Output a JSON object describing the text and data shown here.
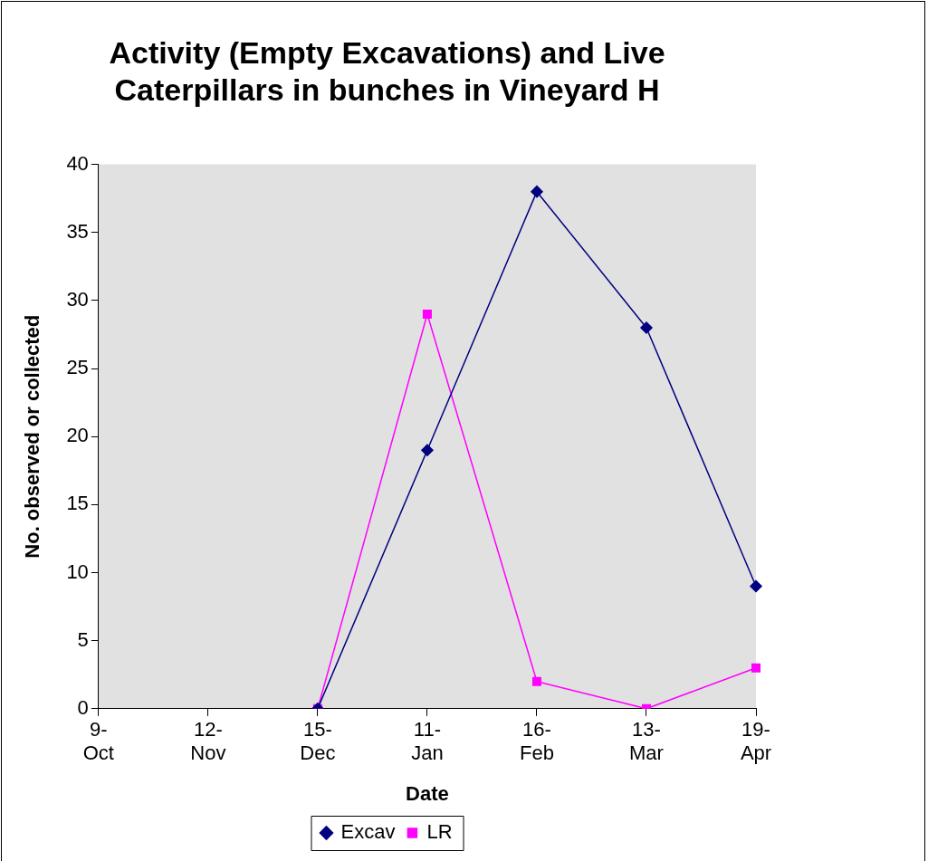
{
  "chart_data": {
    "type": "line",
    "title": "Activity (Empty Excavations) and Live Caterpillars in bunches in Vineyard H",
    "xlabel": "Date",
    "ylabel": "No. observed or collected",
    "categories": [
      "9-Oct",
      "12-Nov",
      "15-Dec",
      "11-Jan",
      "16-Feb",
      "13-Mar",
      "19-Apr"
    ],
    "series": [
      {
        "name": "Excav",
        "color": "#000080",
        "marker": "diamond",
        "values": [
          null,
          null,
          0,
          19,
          38,
          28,
          9
        ]
      },
      {
        "name": "LR",
        "color": "#ff00ff",
        "marker": "square",
        "values": [
          null,
          null,
          0,
          29,
          2,
          0,
          3
        ]
      }
    ],
    "ylim": [
      0,
      40
    ],
    "yticks": [
      0,
      5,
      10,
      15,
      20,
      25,
      30,
      35,
      40
    ],
    "grid": false,
    "legend": "bottom",
    "line_style": "solid"
  }
}
